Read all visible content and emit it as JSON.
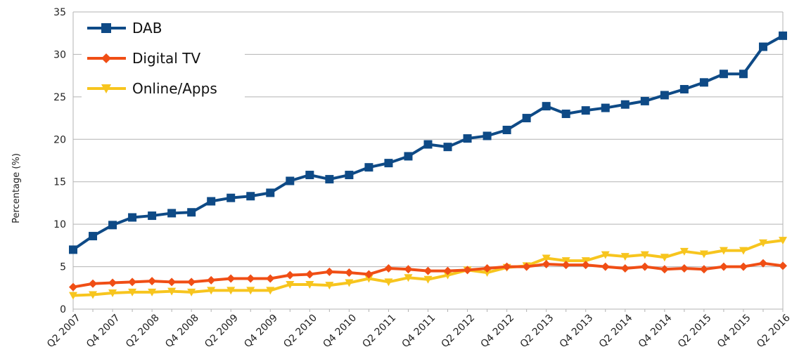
{
  "chart_data": {
    "type": "line",
    "xlabel": "",
    "ylabel": "Percentage (%)",
    "ylim": [
      0,
      35
    ],
    "yticks": [
      0,
      5,
      10,
      15,
      20,
      25,
      30,
      35
    ],
    "grid": "horizontal",
    "legend_position": "top-left",
    "x": [
      "Q2 2007",
      "Q3 2007",
      "Q4 2007",
      "Q1 2008",
      "Q2 2008",
      "Q3 2008",
      "Q4 2008",
      "Q1 2009",
      "Q2 2009",
      "Q3 2009",
      "Q4 2009",
      "Q1 2010",
      "Q2 2010",
      "Q3 2010",
      "Q4 2010",
      "Q1 2011",
      "Q2 2011",
      "Q3 2011",
      "Q4 2011",
      "Q1 2012",
      "Q2 2012",
      "Q3 2012",
      "Q4 2012",
      "Q1 2013",
      "Q2 2013",
      "Q3 2013",
      "Q4 2013",
      "Q1 2014",
      "Q2 2014",
      "Q3 2014",
      "Q4 2014",
      "Q1 2015",
      "Q2 2015",
      "Q3 2015",
      "Q4 2015",
      "Q1 2016",
      "Q2 2016"
    ],
    "x_tick_labels": [
      "Q2 2007",
      "Q4 2007",
      "Q2 2008",
      "Q4 2008",
      "Q2 2009",
      "Q4 2009",
      "Q2 2010",
      "Q4 2010",
      "Q2 2011",
      "Q4 2011",
      "Q2 2012",
      "Q4 2012",
      "Q2 2013",
      "Q4 2013",
      "Q2 2014",
      "Q4 2014",
      "Q2 2015",
      "Q4 2015",
      "Q2 2016"
    ],
    "series": [
      {
        "name": "DAB",
        "color": "#0e4a86",
        "marker": "square",
        "values": [
          7.0,
          8.6,
          9.9,
          10.8,
          11.0,
          11.3,
          11.4,
          12.7,
          13.1,
          13.3,
          13.7,
          15.1,
          15.8,
          15.3,
          15.8,
          16.7,
          17.2,
          18.0,
          19.4,
          19.1,
          20.1,
          20.4,
          21.1,
          22.5,
          23.9,
          23.0,
          23.4,
          23.7,
          24.1,
          24.5,
          25.2,
          25.9,
          26.7,
          27.7,
          27.7,
          30.9,
          32.2
        ]
      },
      {
        "name": "Digital TV",
        "color": "#f04e15",
        "marker": "diamond",
        "values": [
          2.6,
          3.0,
          3.1,
          3.2,
          3.3,
          3.2,
          3.2,
          3.4,
          3.6,
          3.6,
          3.6,
          4.0,
          4.1,
          4.4,
          4.3,
          4.1,
          4.8,
          4.7,
          4.5,
          4.5,
          4.6,
          4.8,
          5.0,
          5.0,
          5.3,
          5.2,
          5.2,
          5.0,
          4.8,
          5.0,
          4.7,
          4.8,
          4.7,
          5.0,
          5.0,
          5.4,
          5.1
        ]
      },
      {
        "name": "Online/Apps",
        "color": "#f7c51e",
        "marker": "triangle-down",
        "values": [
          1.6,
          1.7,
          1.9,
          2.0,
          2.0,
          2.1,
          2.0,
          2.2,
          2.2,
          2.2,
          2.2,
          2.9,
          2.9,
          2.8,
          3.1,
          3.6,
          3.2,
          3.7,
          3.5,
          4.0,
          4.6,
          4.3,
          4.9,
          5.1,
          6.0,
          5.7,
          5.7,
          6.4,
          6.2,
          6.4,
          6.1,
          6.8,
          6.5,
          6.9,
          6.9,
          7.8,
          8.1
        ]
      }
    ]
  }
}
